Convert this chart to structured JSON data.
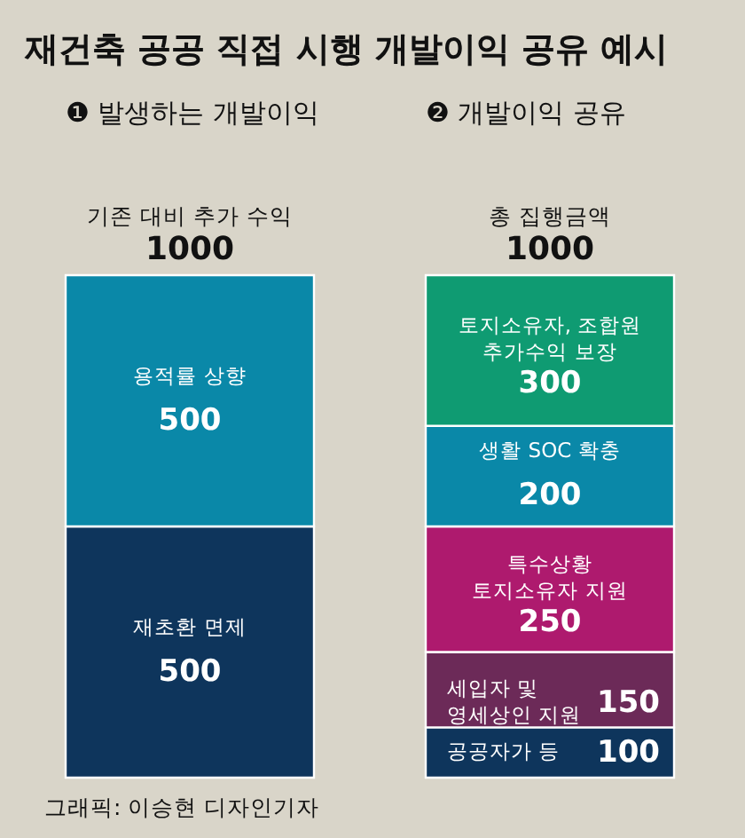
{
  "chart_data": {
    "type": "bar",
    "stacked": true,
    "title": "재건축 공공 직접 시행 개발이익 공유 예시",
    "categories": [
      "❶ 발생하는 개발이익",
      "❷ 개발이익 공유"
    ],
    "series": [
      {
        "name": "재초환 면제",
        "color": "#0e355c",
        "values": [
          500,
          null
        ]
      },
      {
        "name": "용적률 상향",
        "color": "#0a88a8",
        "values": [
          500,
          null
        ]
      },
      {
        "name": "공공자가 등",
        "color": "#0e355c",
        "values": [
          null,
          100
        ]
      },
      {
        "name": "세입자 및 영세상인 지원",
        "color": "#6c2a58",
        "values": [
          null,
          150
        ]
      },
      {
        "name": "특수상황 토지소유자 지원",
        "color": "#ae1a6e",
        "values": [
          null,
          250
        ]
      },
      {
        "name": "생활 SOC 확충",
        "color": "#0a88a8",
        "values": [
          null,
          200
        ]
      },
      {
        "name": "토지소유자, 조합원 추가수익 보장",
        "color": "#0f9b72",
        "values": [
          null,
          300
        ]
      }
    ],
    "data_labels": true,
    "totals": [
      "1000",
      "1000"
    ],
    "annotations": [
      {
        "text": "기존 대비 추가 수익",
        "x": "❶ 발생하는 개발이익",
        "y": 1000
      },
      {
        "text": "총 집행금액",
        "x": "❷ 개발이익 공유",
        "y": 1000
      },
      "그래픽: 이승현 디자인기자"
    ],
    "tick_labels": "x",
    "legend": false
  }
}
